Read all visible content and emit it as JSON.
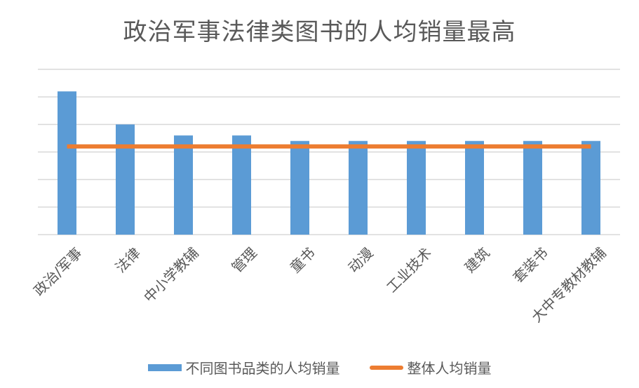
{
  "chart_data": {
    "type": "bar",
    "title": "政治军事法律类图书的人均销量最高",
    "xlabel": "",
    "ylabel": "",
    "ylim": [
      0,
      6
    ],
    "y_ticks_visible": false,
    "grid": true,
    "legend_position": "bottom",
    "categories": [
      "政治/军事",
      "法律",
      "中小学教辅",
      "管理",
      "童书",
      "动漫",
      "工业技术",
      "建筑",
      "套装书",
      "大中专教材教辅"
    ],
    "series": [
      {
        "name": "不同图书品类的人均销量",
        "type": "bar",
        "color": "#5B9BD5",
        "values": [
          5.2,
          4.0,
          3.6,
          3.6,
          3.4,
          3.4,
          3.4,
          3.4,
          3.4,
          3.4
        ]
      },
      {
        "name": "整体人均销量",
        "type": "line",
        "color": "#ED7D31",
        "values": [
          3.2,
          3.2,
          3.2,
          3.2,
          3.2,
          3.2,
          3.2,
          3.2,
          3.2,
          3.2
        ]
      }
    ]
  },
  "legend": {
    "bar_label": "不同图书品类的人均销量",
    "line_label": "整体人均销量"
  },
  "colors": {
    "bar": "#5B9BD5",
    "line": "#ED7D31",
    "grid": "#D9D9D9",
    "text": "#595959"
  }
}
